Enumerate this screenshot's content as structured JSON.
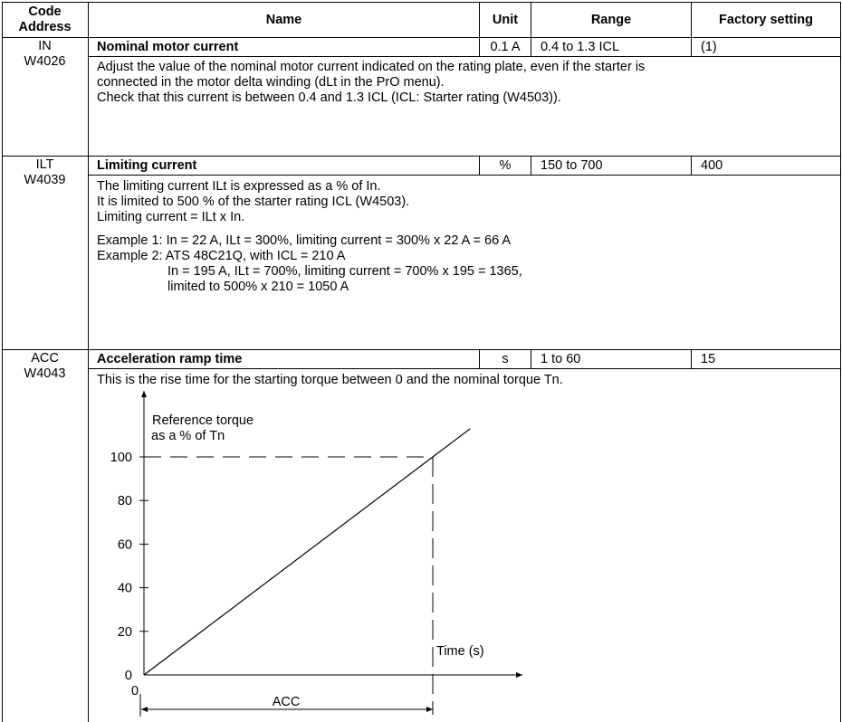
{
  "header": {
    "code_address": [
      "Code",
      "Address"
    ],
    "name": "Name",
    "unit": "Unit",
    "range": "Range",
    "factory_setting": "Factory setting"
  },
  "params": [
    {
      "code": "IN",
      "address": "W4026",
      "name": "Nominal motor current",
      "unit": "0.1 A",
      "range": "0.4 to 1.3 ICL",
      "factory": "(1)",
      "desc": [
        "Adjust the value of the nominal motor current indicated on the rating plate, even if the starter is",
        "connected in the motor delta winding (dLt in the PrO menu).",
        "Check that this current is between 0.4 and 1.3 ICL (ICL: Starter rating (W4503))."
      ]
    },
    {
      "code": "ILT",
      "address": "W4039",
      "name": "Limiting current",
      "unit": "%",
      "range": "150 to 700",
      "factory": "400",
      "desc": [
        "The limiting current ILt is expressed as a % of In.",
        "It is limited to 500 % of the starter rating ICL (W4503).",
        "Limiting current = ILt x In."
      ],
      "examples": [
        "Example 1: In = 22 A, ILt = 300%, limiting current = 300% x 22 A = 66 A",
        "Example 2: ATS 48C21Q, with ICL = 210 A",
        "In = 195 A, ILt = 700%, limiting current = 700% x 195 = 1365,",
        "limited to 500% x 210 = 1050 A"
      ]
    },
    {
      "code": "ACC",
      "address": "W4043",
      "name": "Acceleration ramp time",
      "unit": "s",
      "range": "1 to 60",
      "factory": "15",
      "desc": [
        "This is the rise time for the starting torque between 0 and the nominal torque Tn."
      ]
    }
  ],
  "chart_data": {
    "type": "line",
    "ylabel_lines": [
      "Reference torque",
      "as a % of Tn"
    ],
    "xlabel": "Time (s)",
    "yticks": [
      "100",
      "80",
      "60",
      "40",
      "20",
      "0"
    ],
    "x_origin_label": "0",
    "ramp_label": "ACC",
    "series": [
      {
        "x": [
          0,
          1
        ],
        "y": [
          0,
          100
        ]
      }
    ]
  }
}
